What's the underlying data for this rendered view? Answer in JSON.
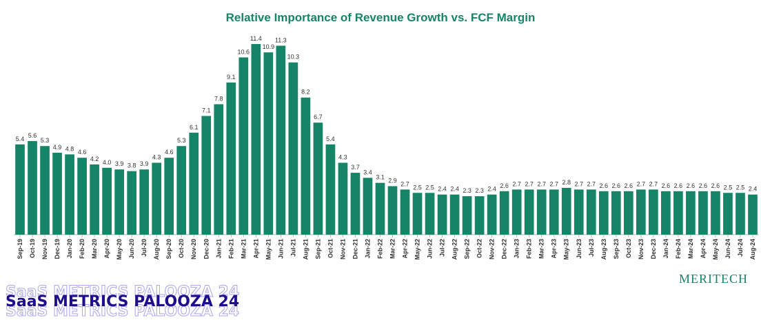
{
  "chart_data": {
    "type": "bar",
    "title": "Relative Importance of Revenue Growth vs. FCF Margin",
    "xlabel": "",
    "ylabel": "",
    "ylim": [
      0,
      12
    ],
    "grid": false,
    "legend": "none",
    "bar_color": "#168466",
    "categories": [
      "Sep-19",
      "Oct-19",
      "Nov-19",
      "Dec-19",
      "Jan-20",
      "Feb-20",
      "Mar-20",
      "Apr-20",
      "May-20",
      "Jun-20",
      "Jul-20",
      "Aug-20",
      "Sep-20",
      "Oct-20",
      "Nov-20",
      "Dec-20",
      "Jan-21",
      "Feb-21",
      "Mar-21",
      "Apr-21",
      "May-21",
      "Jun-21",
      "Jul-21",
      "Aug-21",
      "Sep-21",
      "Oct-21",
      "Nov-21",
      "Dec-21",
      "Jan-22",
      "Feb-22",
      "Mar-22",
      "Apr-22",
      "May-22",
      "Jun-22",
      "Jul-22",
      "Aug-22",
      "Sep-22",
      "Oct-22",
      "Nov-22",
      "Dec-22",
      "Jan-23",
      "Feb-23",
      "Mar-23",
      "Apr-23",
      "May-23",
      "Jun-23",
      "Jul-23",
      "Aug-23",
      "Sep-23",
      "Oct-23",
      "Nov-23",
      "Dec-23",
      "Jan-24",
      "Feb-24",
      "Mar-24",
      "Apr-24",
      "May-24",
      "Jun-24",
      "Jul-24",
      "Aug-24"
    ],
    "values": [
      5.4,
      5.6,
      5.3,
      4.9,
      4.8,
      4.6,
      4.2,
      4.0,
      3.9,
      3.8,
      3.9,
      4.3,
      4.6,
      5.3,
      6.1,
      7.1,
      7.8,
      9.1,
      10.6,
      11.4,
      10.9,
      11.3,
      10.3,
      8.2,
      6.7,
      5.4,
      4.3,
      3.7,
      3.4,
      3.1,
      2.9,
      2.7,
      2.5,
      2.5,
      2.4,
      2.4,
      2.3,
      2.3,
      2.4,
      2.6,
      2.7,
      2.7,
      2.7,
      2.7,
      2.8,
      2.7,
      2.7,
      2.6,
      2.6,
      2.6,
      2.7,
      2.7,
      2.6,
      2.6,
      2.6,
      2.6,
      2.6,
      2.5,
      2.5,
      2.4
    ],
    "value_labels": [
      "5.4",
      "5.6",
      "5.3",
      "4.9",
      "4.8",
      "4.6",
      "4.2",
      "4.0",
      "3.9",
      "3.8",
      "3.9",
      "4.3",
      "4.6",
      "5.3",
      "6.1",
      "7.1",
      "7.8",
      "9.1",
      "10.6",
      "11.4",
      "10.9",
      "11.3",
      "10.3",
      "8.2",
      "6.7",
      "5.4",
      "4.3",
      "3.7",
      "3.4",
      "3.1",
      "2.9",
      "2.7",
      "2.5",
      "2.5",
      "2.4",
      "2.4",
      "2.3",
      "2.3",
      "2.4",
      "2.6",
      "2.7",
      "2.7",
      "2.7",
      "2.7",
      "2.8",
      "2.7",
      "2.7",
      "2.6",
      "2.6",
      "2.6",
      "2.7",
      "2.7",
      "2.6",
      "2.6",
      "2.6",
      "2.6",
      "2.6",
      "2.5",
      "2.5",
      "2.4"
    ]
  },
  "branding": {
    "company": "Meritech",
    "event": "SaaS METRICS PALOOZA 24",
    "brand_color": "#168466",
    "event_color": "#1d0f8c"
  }
}
